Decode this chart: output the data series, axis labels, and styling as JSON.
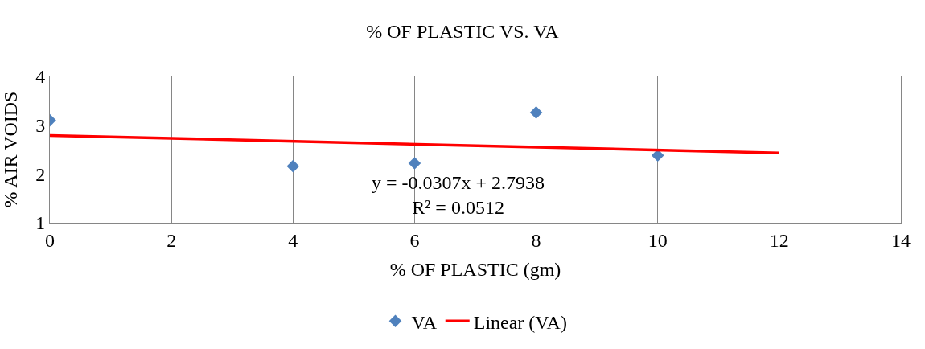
{
  "chart_data": {
    "type": "scatter",
    "title": "% OF PLASTIC VS. VA",
    "xlabel": "% OF PLASTIC (gm)",
    "ylabel": "% AIR VOIDS",
    "series": [
      {
        "name": "VA",
        "color": "#4f81bd",
        "marker": "diamond",
        "x": [
          0,
          4,
          6,
          8,
          10
        ],
        "values": [
          3.1,
          2.16,
          2.22,
          3.26,
          2.38
        ]
      },
      {
        "name": "Linear (VA)",
        "type": "line",
        "color": "#ff0000",
        "marker": "none",
        "x": [
          0,
          12
        ],
        "values": [
          2.79,
          2.43
        ]
      }
    ],
    "annotations": [
      "y = -0.0307x + 2.7938\nR² = 0.0512"
    ],
    "xlim": [
      0,
      14
    ],
    "xticks": [
      0,
      2,
      4,
      6,
      8,
      10,
      12,
      14
    ],
    "ylim": [
      1,
      4
    ],
    "yticks": [
      1,
      2,
      3,
      4
    ],
    "grid": true,
    "legend": "bottom"
  }
}
